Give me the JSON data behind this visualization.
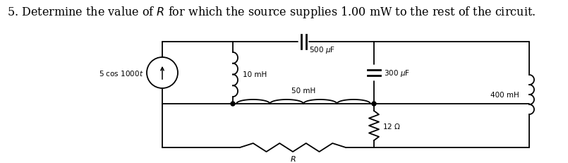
{
  "title": "5. Determine the value of $R$ for which the source supplies 1.00 mW to the rest of the circuit.",
  "title_fontsize": 11.5,
  "background_color": "#ffffff",
  "circuit": {
    "source_label": "5 cos 1000$t$",
    "L1_label": "10 mH",
    "L2_label": "50 mH",
    "C1_label": "500 $\\mu$F",
    "C2_label": "300 $\\mu$F",
    "L3_label": "400 mH",
    "R1_label": "12 $\\Omega$",
    "R_label": "$R$"
  }
}
